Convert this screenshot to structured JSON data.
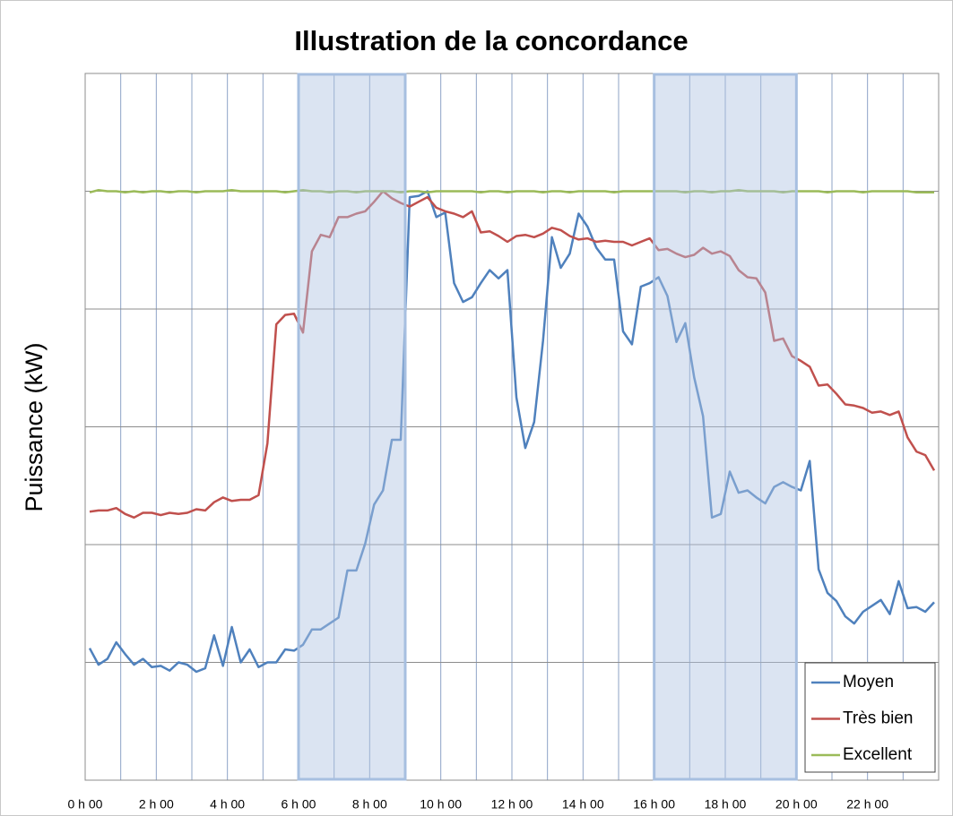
{
  "chart_data": {
    "type": "line",
    "title": "Illustration de la concordance",
    "y_label": "Puissance (kW)",
    "categories": [
      "0 h 00",
      null,
      null,
      null,
      null,
      null,
      null,
      null,
      "2 h 00",
      null,
      null,
      null,
      null,
      null,
      null,
      null,
      "4 h 00",
      null,
      null,
      null,
      null,
      null,
      null,
      null,
      "6 h 00",
      null,
      null,
      null,
      null,
      null,
      null,
      null,
      "8 h 00",
      null,
      null,
      null,
      null,
      null,
      null,
      null,
      "10 h 00",
      null,
      null,
      null,
      null,
      null,
      null,
      null,
      "12 h 00",
      null,
      null,
      null,
      null,
      null,
      null,
      null,
      "14 h 00",
      null,
      null,
      null,
      null,
      null,
      null,
      null,
      "16 h 00",
      null,
      null,
      null,
      null,
      null,
      null,
      null,
      "18 h 00",
      null,
      null,
      null,
      null,
      null,
      null,
      null,
      "20 h 00",
      null,
      null,
      null,
      null,
      null,
      null,
      null,
      "22 h 00",
      null,
      null,
      null,
      null,
      null,
      null,
      null
    ],
    "series": [
      {
        "name": "Moyen",
        "color": "#4f81bd",
        "values": [
          1.12,
          0.98,
          1.03,
          1.17,
          1.07,
          0.98,
          1.03,
          0.96,
          0.97,
          0.93,
          1.0,
          0.98,
          0.92,
          0.95,
          1.23,
          0.97,
          1.3,
          1.0,
          1.11,
          0.96,
          1.0,
          1.0,
          1.11,
          1.1,
          1.15,
          1.28,
          1.28,
          1.33,
          1.38,
          1.78,
          1.78,
          2.01,
          2.34,
          2.46,
          2.89,
          2.89,
          4.95,
          4.96,
          5.0,
          4.78,
          4.82,
          4.22,
          4.06,
          4.1,
          4.22,
          4.33,
          4.26,
          4.33,
          3.25,
          2.82,
          3.04,
          3.73,
          4.61,
          4.35,
          4.47,
          4.81,
          4.7,
          4.52,
          4.42,
          4.42,
          3.81,
          3.7,
          4.19,
          4.22,
          4.27,
          4.11,
          3.72,
          3.88,
          3.42,
          3.09,
          2.23,
          2.26,
          2.62,
          2.44,
          2.46,
          2.4,
          2.35,
          2.49,
          2.53,
          2.49,
          2.46,
          2.71,
          1.79,
          1.59,
          1.52,
          1.39,
          1.33,
          1.43,
          1.48,
          1.53,
          1.41,
          1.69,
          1.46,
          1.47,
          1.43,
          1.51
        ]
      },
      {
        "name": "Très bien",
        "color": "#c0504d",
        "values": [
          2.28,
          2.29,
          2.29,
          2.31,
          2.26,
          2.23,
          2.27,
          2.27,
          2.25,
          2.27,
          2.26,
          2.27,
          2.3,
          2.29,
          2.36,
          2.4,
          2.37,
          2.38,
          2.38,
          2.42,
          2.86,
          3.87,
          3.95,
          3.96,
          3.8,
          4.49,
          4.63,
          4.61,
          4.78,
          4.78,
          4.81,
          4.83,
          4.91,
          5.0,
          4.94,
          4.9,
          4.87,
          4.91,
          4.95,
          4.86,
          4.83,
          4.81,
          4.78,
          4.83,
          4.65,
          4.66,
          4.62,
          4.57,
          4.62,
          4.63,
          4.61,
          4.64,
          4.69,
          4.67,
          4.62,
          4.59,
          4.6,
          4.57,
          4.58,
          4.57,
          4.57,
          4.54,
          4.57,
          4.6,
          4.5,
          4.51,
          4.47,
          4.44,
          4.46,
          4.52,
          4.47,
          4.49,
          4.45,
          4.33,
          4.27,
          4.26,
          4.14,
          3.73,
          3.75,
          3.6,
          3.56,
          3.51,
          3.35,
          3.36,
          3.28,
          3.19,
          3.18,
          3.16,
          3.12,
          3.13,
          3.1,
          3.13,
          2.91,
          2.79,
          2.76,
          2.63
        ]
      },
      {
        "name": "Excellent",
        "color": "#9bbb59",
        "values": [
          4.99,
          5.01,
          5.0,
          5.0,
          4.99,
          5.0,
          4.99,
          5.0,
          5.0,
          4.99,
          5.0,
          5.0,
          4.99,
          5.0,
          5.0,
          5.0,
          5.01,
          5.0,
          5.0,
          5.0,
          5.0,
          5.0,
          4.99,
          5.0,
          5.01,
          5.0,
          5.0,
          4.99,
          5.0,
          5.0,
          4.99,
          5.0,
          5.0,
          5.0,
          5.0,
          4.99,
          5.0,
          5.0,
          4.99,
          5.0,
          5.0,
          5.0,
          5.0,
          5.0,
          4.99,
          5.0,
          5.0,
          4.99,
          5.0,
          5.0,
          5.0,
          4.99,
          5.0,
          5.0,
          4.99,
          5.0,
          5.0,
          5.0,
          5.0,
          4.99,
          5.0,
          5.0,
          5.0,
          5.0,
          5.0,
          5.0,
          5.0,
          4.99,
          5.0,
          5.0,
          4.99,
          5.0,
          5.0,
          5.01,
          5.0,
          5.0,
          5.0,
          5.0,
          4.99,
          5.0,
          5.0,
          5.0,
          5.0,
          4.99,
          5.0,
          5.0,
          5.0,
          4.99,
          5.0,
          5.0,
          5.0,
          5.0,
          5.0,
          4.99,
          4.99,
          4.99
        ]
      }
    ],
    "highlights": [
      [
        24,
        36
      ],
      [
        64,
        80
      ]
    ],
    "ylim": [
      0,
      6
    ],
    "yticks": [
      0,
      1,
      2,
      3,
      4,
      5,
      6
    ],
    "grid": true,
    "legend": "bottom-right"
  }
}
